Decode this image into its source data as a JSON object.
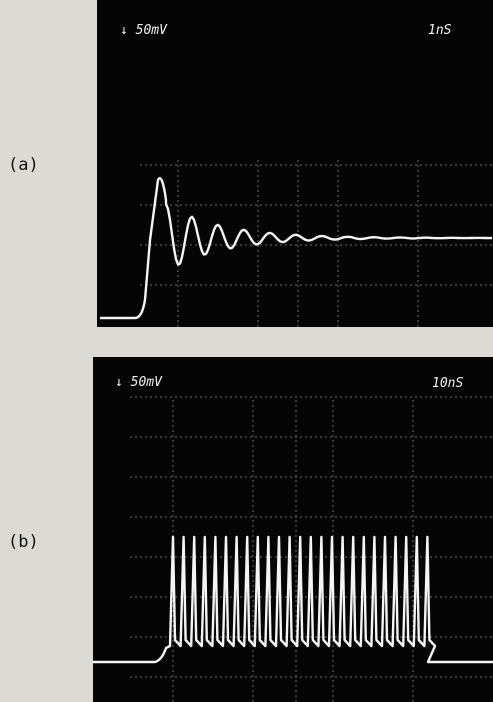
{
  "figure": {
    "panels": [
      {
        "label": "(a)",
        "scale": "↓ 50mV",
        "timebase": "1nS"
      },
      {
        "label": "(b)",
        "scale": "↓ 50mV",
        "timebase": "10nS"
      }
    ]
  }
}
